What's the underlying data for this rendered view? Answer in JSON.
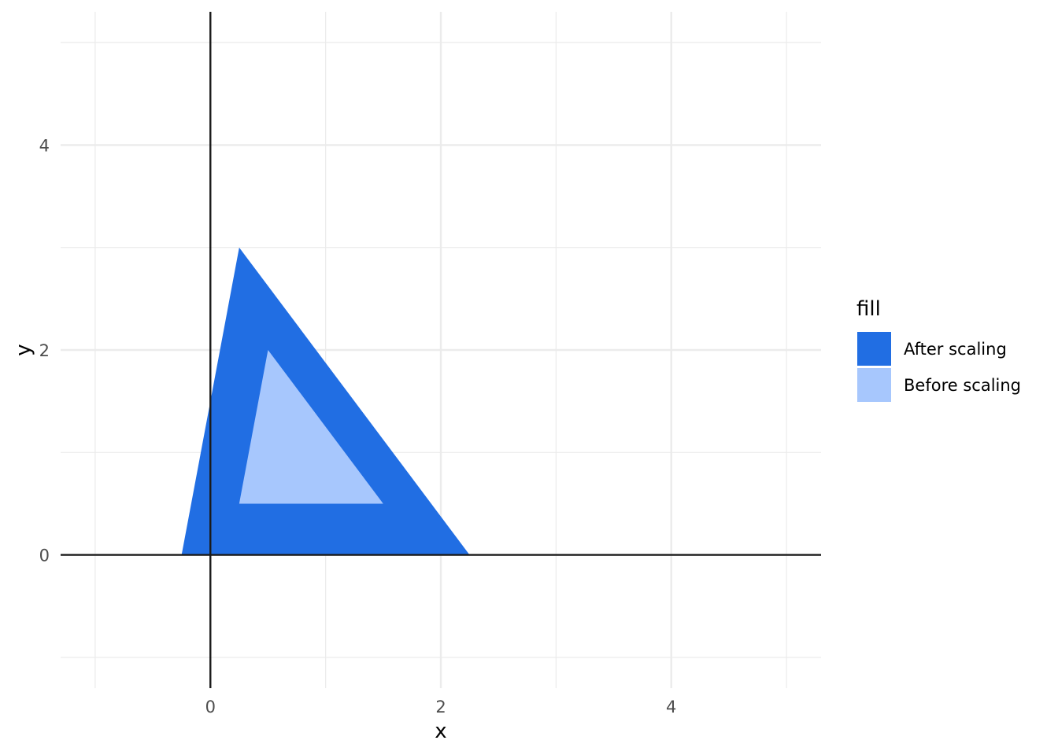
{
  "chart_data": {
    "type": "polygon",
    "title": "",
    "xlabel": "x",
    "ylabel": "y",
    "xlim": [
      -1.3,
      5.3
    ],
    "ylim": [
      -1.3,
      5.3
    ],
    "x_ticks": [
      0,
      2,
      4
    ],
    "y_ticks": [
      0,
      2,
      4
    ],
    "minor_x_ticks": [
      -1,
      1,
      3,
      5
    ],
    "minor_y_ticks": [
      -1,
      1,
      3,
      5
    ],
    "grid": true,
    "reference_lines": {
      "x": 0,
      "y": 0
    },
    "legend": {
      "title": "fill",
      "position": "right",
      "entries": [
        "After scaling",
        "Before scaling"
      ]
    },
    "series": [
      {
        "name": "After scaling",
        "color": "#216ee3",
        "points": [
          [
            -0.25,
            0
          ],
          [
            0.25,
            3
          ],
          [
            2.25,
            0
          ]
        ]
      },
      {
        "name": "Before scaling",
        "color": "#a7c7fd",
        "points": [
          [
            0.25,
            0.5
          ],
          [
            0.5,
            2
          ],
          [
            1.5,
            0.5
          ]
        ]
      }
    ]
  }
}
